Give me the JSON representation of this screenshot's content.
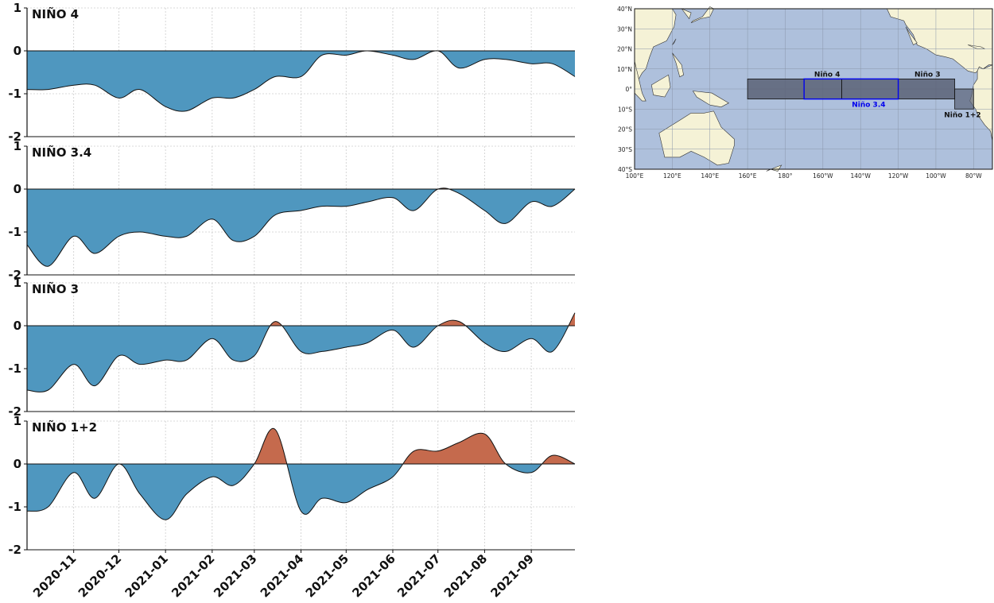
{
  "chart_data": [
    {
      "type": "area",
      "title": "NIÑO 4",
      "ylim": [
        -2,
        1
      ],
      "yticks": [
        "1",
        "0",
        "-1",
        "-2"
      ],
      "x": [
        "2020-10-01",
        "2020-10-15",
        "2020-11-01",
        "2020-11-15",
        "2020-12-01",
        "2020-12-15",
        "2021-01-01",
        "2021-01-15",
        "2021-02-01",
        "2021-02-15",
        "2021-03-01",
        "2021-03-15",
        "2021-04-01",
        "2021-04-15",
        "2021-05-01",
        "2021-05-15",
        "2021-06-01",
        "2021-06-15",
        "2021-07-01",
        "2021-07-15",
        "2021-08-01",
        "2021-08-15",
        "2021-09-01",
        "2021-09-15",
        "2021-09-30"
      ],
      "values": [
        -0.9,
        -0.9,
        -0.8,
        -0.8,
        -1.1,
        -0.9,
        -1.3,
        -1.4,
        -1.1,
        -1.1,
        -0.9,
        -0.6,
        -0.6,
        -0.1,
        -0.1,
        0.0,
        -0.1,
        -0.2,
        0.0,
        -0.4,
        -0.2,
        -0.2,
        -0.3,
        -0.3,
        -0.6
      ]
    },
    {
      "type": "area",
      "title": "NIÑO 3.4",
      "ylim": [
        -2,
        1
      ],
      "yticks": [
        "1",
        "0",
        "-1",
        "-2"
      ],
      "x": [
        "2020-10-01",
        "2020-10-15",
        "2020-11-01",
        "2020-11-15",
        "2020-12-01",
        "2020-12-15",
        "2021-01-01",
        "2021-01-15",
        "2021-02-01",
        "2021-02-15",
        "2021-03-01",
        "2021-03-15",
        "2021-04-01",
        "2021-04-15",
        "2021-05-01",
        "2021-05-15",
        "2021-06-01",
        "2021-06-15",
        "2021-07-01",
        "2021-07-15",
        "2021-08-01",
        "2021-08-15",
        "2021-09-01",
        "2021-09-15",
        "2021-09-30"
      ],
      "values": [
        -1.3,
        -1.8,
        -1.1,
        -1.5,
        -1.1,
        -1.0,
        -1.1,
        -1.1,
        -0.7,
        -1.2,
        -1.1,
        -0.6,
        -0.5,
        -0.4,
        -0.4,
        -0.3,
        -0.2,
        -0.5,
        0.0,
        -0.1,
        -0.5,
        -0.8,
        -0.3,
        -0.4,
        0.0
      ]
    },
    {
      "type": "area",
      "title": "NIÑO 3",
      "ylim": [
        -2,
        1
      ],
      "yticks": [
        "1",
        "0",
        "-1",
        "-2"
      ],
      "x": [
        "2020-10-01",
        "2020-10-15",
        "2020-11-01",
        "2020-11-15",
        "2020-12-01",
        "2020-12-15",
        "2021-01-01",
        "2021-01-15",
        "2021-02-01",
        "2021-02-15",
        "2021-03-01",
        "2021-03-15",
        "2021-04-01",
        "2021-04-15",
        "2021-05-01",
        "2021-05-15",
        "2021-06-01",
        "2021-06-15",
        "2021-07-01",
        "2021-07-15",
        "2021-08-01",
        "2021-08-15",
        "2021-09-01",
        "2021-09-15",
        "2021-09-30"
      ],
      "values": [
        -1.5,
        -1.5,
        -0.9,
        -1.4,
        -0.7,
        -0.9,
        -0.8,
        -0.8,
        -0.3,
        -0.8,
        -0.7,
        0.1,
        -0.6,
        -0.6,
        -0.5,
        -0.4,
        -0.1,
        -0.5,
        0.0,
        0.1,
        -0.4,
        -0.6,
        -0.3,
        -0.6,
        0.3
      ]
    },
    {
      "type": "area",
      "title": "NIÑO 1+2",
      "ylim": [
        -2,
        1
      ],
      "yticks": [
        "1",
        "0",
        "-1",
        "-2"
      ],
      "x": [
        "2020-10-01",
        "2020-10-15",
        "2020-11-01",
        "2020-11-15",
        "2020-12-01",
        "2020-12-15",
        "2021-01-01",
        "2021-01-15",
        "2021-02-01",
        "2021-02-15",
        "2021-03-01",
        "2021-03-15",
        "2021-04-01",
        "2021-04-15",
        "2021-05-01",
        "2021-05-15",
        "2021-06-01",
        "2021-06-15",
        "2021-07-01",
        "2021-07-15",
        "2021-08-01",
        "2021-08-15",
        "2021-09-01",
        "2021-09-15",
        "2021-09-30"
      ],
      "values": [
        -1.1,
        -1.0,
        -0.2,
        -0.8,
        0.0,
        -0.7,
        -1.3,
        -0.7,
        -0.3,
        -0.5,
        0.0,
        0.8,
        -1.1,
        -0.8,
        -0.9,
        -0.6,
        -0.3,
        0.3,
        0.3,
        0.5,
        0.7,
        0.0,
        -0.2,
        0.2,
        0.0
      ]
    }
  ],
  "x_tick_labels": [
    "2020-11",
    "2020-12",
    "2021-01",
    "2021-02",
    "2021-03",
    "2021-04",
    "2021-05",
    "2021-06",
    "2021-07",
    "2021-08",
    "2021-09"
  ],
  "x_tick_dates": [
    "2020-11-01",
    "2020-12-01",
    "2021-01-01",
    "2021-02-01",
    "2021-03-01",
    "2021-04-01",
    "2021-05-01",
    "2021-06-01",
    "2021-07-01",
    "2021-08-01",
    "2021-09-01"
  ],
  "x_range": [
    "2020-10-01",
    "2021-09-30"
  ],
  "colors": {
    "negative": "#4f97bf",
    "positive": "#c56a4d",
    "grid": "#cccccc"
  },
  "map": {
    "lat_labels": [
      "40°N",
      "30°N",
      "20°N",
      "10°N",
      "0°",
      "10°S",
      "20°S",
      "30°S",
      "40°S"
    ],
    "lon_labels": [
      "100°E",
      "120°E",
      "140°E",
      "160°E",
      "180°",
      "160°W",
      "140°W",
      "120°W",
      "100°W",
      "80°W"
    ],
    "regions": [
      {
        "name": "Niño 4",
        "lon": [
          160,
          210
        ],
        "lat": [
          -5,
          5
        ]
      },
      {
        "name": "Niño 3.4",
        "lon": [
          190,
          240
        ],
        "lat": [
          -5,
          5
        ]
      },
      {
        "name": "Niño 3",
        "lon": [
          210,
          270
        ],
        "lat": [
          -5,
          5
        ]
      },
      {
        "name": "Niño 1+2",
        "lon": [
          270,
          280
        ],
        "lat": [
          -10,
          0
        ]
      }
    ],
    "colors": {
      "ocean": "#aec0dc",
      "land": "#f5f2d6",
      "region_fill": "#5a6276",
      "nino34": "#0000ee"
    }
  }
}
